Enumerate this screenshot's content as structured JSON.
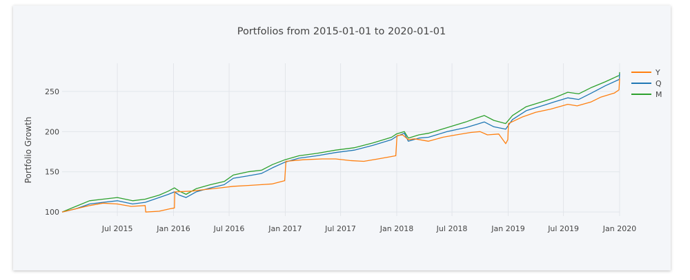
{
  "chart_data": {
    "type": "line",
    "title": "Portfolios from 2015-01-01 to 2020-01-01",
    "xlabel": "",
    "ylabel": "Portfolio Growth",
    "x_tick_labels": [
      "Jul 2015",
      "Jan 2016",
      "Jul 2016",
      "Jan 2017",
      "Jul 2017",
      "Jan 2018",
      "Jul 2018",
      "Jan 2019",
      "Jul 2019",
      "Jan 2020"
    ],
    "x_tick_dates": [
      "2015-07-01",
      "2016-01-01",
      "2016-07-01",
      "2017-01-01",
      "2017-07-01",
      "2018-01-01",
      "2018-07-01",
      "2019-01-01",
      "2019-07-01",
      "2020-01-01"
    ],
    "y_ticks": [
      100,
      150,
      200,
      250
    ],
    "xlim": [
      "2015-01-01",
      "2020-01-01"
    ],
    "ylim": [
      95,
      285
    ],
    "grid": true,
    "legend_position": "top-right",
    "series": [
      {
        "name": "Y",
        "color": "#ff7f0e",
        "points": [
          [
            "2015-01-01",
            100
          ],
          [
            "2015-02-15",
            104
          ],
          [
            "2015-04-01",
            108
          ],
          [
            "2015-05-15",
            111
          ],
          [
            "2015-07-01",
            110
          ],
          [
            "2015-08-15",
            107
          ],
          [
            "2015-09-30",
            108
          ],
          [
            "2015-10-02",
            100
          ],
          [
            "2015-11-15",
            101
          ],
          [
            "2015-12-20",
            104
          ],
          [
            "2016-01-04",
            105
          ],
          [
            "2016-01-05",
            125
          ],
          [
            "2016-03-01",
            126
          ],
          [
            "2016-04-15",
            128
          ],
          [
            "2016-06-01",
            130
          ],
          [
            "2016-07-15",
            132
          ],
          [
            "2016-09-01",
            133
          ],
          [
            "2016-10-15",
            134
          ],
          [
            "2016-11-20",
            135
          ],
          [
            "2016-12-30",
            139
          ],
          [
            "2017-01-03",
            163
          ],
          [
            "2017-03-01",
            165
          ],
          [
            "2017-05-01",
            166
          ],
          [
            "2017-06-15",
            166
          ],
          [
            "2017-08-01",
            164
          ],
          [
            "2017-09-15",
            163
          ],
          [
            "2017-11-01",
            166
          ],
          [
            "2017-12-15",
            169
          ],
          [
            "2017-12-29",
            170
          ],
          [
            "2018-01-02",
            195
          ],
          [
            "2018-01-20",
            196
          ],
          [
            "2018-02-08",
            190
          ],
          [
            "2018-03-01",
            191
          ],
          [
            "2018-04-15",
            188
          ],
          [
            "2018-06-01",
            193
          ],
          [
            "2018-07-15",
            196
          ],
          [
            "2018-09-01",
            199
          ],
          [
            "2018-10-01",
            200
          ],
          [
            "2018-10-25",
            196
          ],
          [
            "2018-12-01",
            197
          ],
          [
            "2018-12-24",
            185
          ],
          [
            "2018-12-31",
            190
          ],
          [
            "2019-01-02",
            210
          ],
          [
            "2019-02-15",
            218
          ],
          [
            "2019-04-01",
            224
          ],
          [
            "2019-05-20",
            228
          ],
          [
            "2019-07-15",
            234
          ],
          [
            "2019-08-15",
            232
          ],
          [
            "2019-09-30",
            237
          ],
          [
            "2019-11-01",
            243
          ],
          [
            "2019-12-15",
            248
          ],
          [
            "2019-12-30",
            252
          ],
          [
            "2020-01-01",
            266
          ]
        ]
      },
      {
        "name": "Q",
        "color": "#1f77b4",
        "points": [
          [
            "2015-01-01",
            100
          ],
          [
            "2015-02-15",
            104
          ],
          [
            "2015-04-01",
            110
          ],
          [
            "2015-05-15",
            112
          ],
          [
            "2015-07-01",
            114
          ],
          [
            "2015-08-20",
            110
          ],
          [
            "2015-09-30",
            112
          ],
          [
            "2015-11-15",
            118
          ],
          [
            "2015-12-15",
            122
          ],
          [
            "2016-01-04",
            125
          ],
          [
            "2016-01-20",
            121
          ],
          [
            "2016-02-11",
            118
          ],
          [
            "2016-03-15",
            125
          ],
          [
            "2016-05-01",
            130
          ],
          [
            "2016-06-15",
            134
          ],
          [
            "2016-07-15",
            142
          ],
          [
            "2016-09-01",
            145
          ],
          [
            "2016-10-15",
            148
          ],
          [
            "2016-11-20",
            155
          ],
          [
            "2016-12-31",
            162
          ],
          [
            "2017-02-15",
            167
          ],
          [
            "2017-04-15",
            170
          ],
          [
            "2017-06-15",
            174
          ],
          [
            "2017-08-15",
            177
          ],
          [
            "2017-10-15",
            183
          ],
          [
            "2017-12-15",
            190
          ],
          [
            "2017-12-31",
            194
          ],
          [
            "2018-01-26",
            198
          ],
          [
            "2018-02-08",
            188
          ],
          [
            "2018-03-15",
            192
          ],
          [
            "2018-04-15",
            193
          ],
          [
            "2018-06-15",
            200
          ],
          [
            "2018-08-15",
            205
          ],
          [
            "2018-09-20",
            209
          ],
          [
            "2018-10-15",
            212
          ],
          [
            "2018-11-15",
            206
          ],
          [
            "2018-12-24",
            203
          ],
          [
            "2019-01-15",
            215
          ],
          [
            "2019-03-01",
            226
          ],
          [
            "2019-04-30",
            233
          ],
          [
            "2019-06-01",
            237
          ],
          [
            "2019-07-15",
            242
          ],
          [
            "2019-08-20",
            240
          ],
          [
            "2019-10-01",
            248
          ],
          [
            "2019-11-15",
            257
          ],
          [
            "2019-12-31",
            265
          ],
          [
            "2020-01-01",
            272
          ]
        ]
      },
      {
        "name": "M",
        "color": "#2ca02c",
        "points": [
          [
            "2015-01-01",
            100
          ],
          [
            "2015-02-15",
            107
          ],
          [
            "2015-04-01",
            114
          ],
          [
            "2015-05-15",
            116
          ],
          [
            "2015-07-01",
            118
          ],
          [
            "2015-08-20",
            114
          ],
          [
            "2015-09-30",
            116
          ],
          [
            "2015-11-15",
            121
          ],
          [
            "2015-12-15",
            126
          ],
          [
            "2016-01-04",
            130
          ],
          [
            "2016-01-20",
            126
          ],
          [
            "2016-02-11",
            122
          ],
          [
            "2016-03-15",
            129
          ],
          [
            "2016-05-01",
            134
          ],
          [
            "2016-06-15",
            138
          ],
          [
            "2016-07-15",
            146
          ],
          [
            "2016-09-01",
            150
          ],
          [
            "2016-10-15",
            152
          ],
          [
            "2016-11-20",
            159
          ],
          [
            "2016-12-31",
            165
          ],
          [
            "2017-02-15",
            170
          ],
          [
            "2017-04-15",
            173
          ],
          [
            "2017-06-15",
            177
          ],
          [
            "2017-08-15",
            180
          ],
          [
            "2017-10-15",
            186
          ],
          [
            "2017-12-15",
            193
          ],
          [
            "2017-12-31",
            197
          ],
          [
            "2018-01-26",
            200
          ],
          [
            "2018-02-08",
            192
          ],
          [
            "2018-03-15",
            196
          ],
          [
            "2018-04-15",
            198
          ],
          [
            "2018-06-15",
            205
          ],
          [
            "2018-08-15",
            212
          ],
          [
            "2018-09-20",
            217
          ],
          [
            "2018-10-15",
            220
          ],
          [
            "2018-11-15",
            214
          ],
          [
            "2018-12-24",
            210
          ],
          [
            "2019-01-15",
            220
          ],
          [
            "2019-03-01",
            231
          ],
          [
            "2019-04-30",
            238
          ],
          [
            "2019-06-01",
            242
          ],
          [
            "2019-07-15",
            249
          ],
          [
            "2019-08-20",
            247
          ],
          [
            "2019-10-01",
            255
          ],
          [
            "2019-11-15",
            262
          ],
          [
            "2019-12-31",
            270
          ],
          [
            "2020-01-01",
            274
          ]
        ]
      }
    ]
  }
}
